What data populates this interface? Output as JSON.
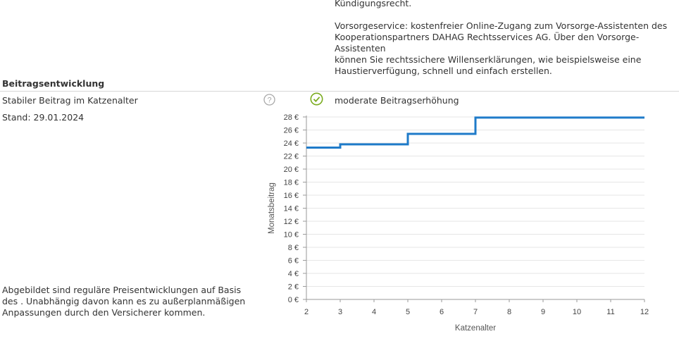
{
  "top_text": {
    "line1": "Kündigungsrecht.",
    "vorsorge": "Vorsorgeservice: kostenfreier Online-Zugang zum Vorsorge-Assistenten des\nKooperationspartners DAHAG Rechtsservices AG. Über den Vorsorge-Assistenten\nkönnen Sie rechtssichere Willenserklärungen, wie beispielsweise eine\nHaustierverfügung, schnell und einfach erstellen."
  },
  "section": {
    "title": "Beitragsentwicklung",
    "row_label": "Stabiler Beitrag im Katzenalter",
    "row_value": "moderate Beitragserhöhung",
    "stand": "Stand: 29.01.2024",
    "footnote": "Abgebildet sind reguläre Preisentwicklungen auf Basis des . Unabhängig davon kann es zu außerplanmäßigen Anpassungen durch den Versicherer kommen."
  },
  "icons": {
    "help": "question-circle-icon",
    "check": "check-circle-icon"
  },
  "colors": {
    "line": "#1f7bc9",
    "check": "#7aab1f",
    "grid": "#e6e6e6",
    "axis": "#9a9a9a"
  },
  "chart_data": {
    "type": "line",
    "step": true,
    "xlabel": "Katzenalter",
    "ylabel": "Monatsbeitrag",
    "xlim": [
      2,
      12
    ],
    "ylim": [
      0,
      28
    ],
    "x_ticks": [
      2,
      3,
      4,
      5,
      6,
      7,
      8,
      9,
      10,
      11,
      12
    ],
    "y_ticks": [
      "0 €",
      "2 €",
      "4 €",
      "6 €",
      "8 €",
      "10 €",
      "12 €",
      "14 €",
      "16 €",
      "18 €",
      "20 €",
      "22 €",
      "24 €",
      "26 €",
      "28 €"
    ],
    "grid": true,
    "series": [
      {
        "x": [
          2,
          3,
          5,
          7,
          12
        ],
        "y": [
          23.3,
          23.8,
          25.4,
          27.9,
          27.9
        ]
      }
    ]
  }
}
